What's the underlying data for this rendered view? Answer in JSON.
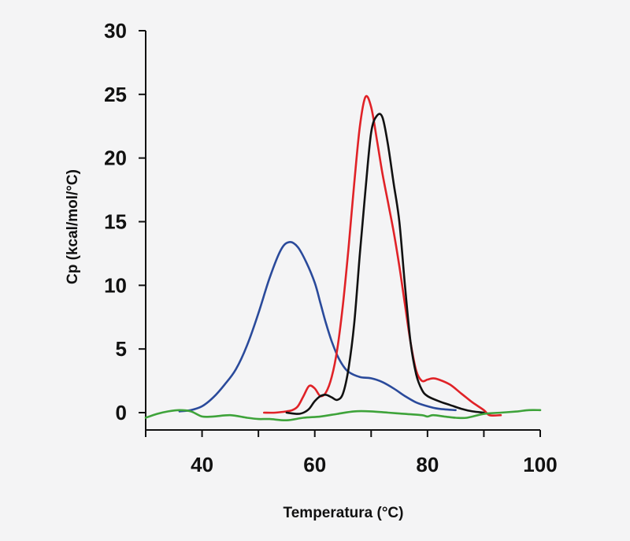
{
  "chart_data": {
    "type": "line",
    "xlabel": "Temperatura (°C)",
    "ylabel": "Cp (kcal/mol/°C)",
    "xlim": [
      30,
      100
    ],
    "ylim": [
      0,
      30
    ],
    "xticks": [
      40,
      60,
      80,
      100
    ],
    "yticks": [
      0,
      5,
      10,
      15,
      20,
      25,
      30
    ],
    "grid": false,
    "series": [
      {
        "color": "#2a4a9b",
        "points": [
          [
            36,
            0.1
          ],
          [
            38,
            0.2
          ],
          [
            40,
            0.5
          ],
          [
            42,
            1.2
          ],
          [
            44,
            2.2
          ],
          [
            46,
            3.4
          ],
          [
            48,
            5.3
          ],
          [
            50,
            7.8
          ],
          [
            52,
            10.6
          ],
          [
            54,
            12.8
          ],
          [
            55.5,
            13.4
          ],
          [
            57,
            13.0
          ],
          [
            58.5,
            11.8
          ],
          [
            60,
            10.2
          ],
          [
            61,
            8.6
          ],
          [
            62,
            7.0
          ],
          [
            63,
            5.6
          ],
          [
            64,
            4.5
          ],
          [
            65,
            3.7
          ],
          [
            66,
            3.2
          ],
          [
            68,
            2.8
          ],
          [
            70,
            2.7
          ],
          [
            72,
            2.4
          ],
          [
            74,
            1.9
          ],
          [
            76,
            1.3
          ],
          [
            78,
            0.8
          ],
          [
            80,
            0.5
          ],
          [
            82,
            0.3
          ],
          [
            85,
            0.2
          ]
        ]
      },
      {
        "color": "#e02227",
        "points": [
          [
            51,
            0.0
          ],
          [
            53,
            0.0
          ],
          [
            55,
            0.1
          ],
          [
            56,
            0.2
          ],
          [
            57,
            0.5
          ],
          [
            58,
            1.3
          ],
          [
            59,
            2.1
          ],
          [
            60,
            1.9
          ],
          [
            61,
            1.3
          ],
          [
            62,
            1.6
          ],
          [
            63,
            2.8
          ],
          [
            64,
            5.0
          ],
          [
            65,
            8.5
          ],
          [
            66,
            13.0
          ],
          [
            67,
            18.0
          ],
          [
            68,
            22.5
          ],
          [
            69,
            24.8
          ],
          [
            70,
            24.0
          ],
          [
            71,
            21.5
          ],
          [
            72,
            18.8
          ],
          [
            73,
            16.5
          ],
          [
            74,
            14.2
          ],
          [
            75,
            11.5
          ],
          [
            76,
            8.5
          ],
          [
            77,
            5.5
          ],
          [
            78,
            3.3
          ],
          [
            79,
            2.5
          ],
          [
            80,
            2.6
          ],
          [
            81,
            2.7
          ],
          [
            82,
            2.6
          ],
          [
            84,
            2.2
          ],
          [
            86,
            1.5
          ],
          [
            88,
            0.8
          ],
          [
            90,
            0.2
          ],
          [
            91,
            -0.2
          ],
          [
            93,
            -0.2
          ]
        ]
      },
      {
        "color": "#111111",
        "points": [
          [
            55,
            0.0
          ],
          [
            57,
            -0.1
          ],
          [
            58,
            0.0
          ],
          [
            59,
            0.3
          ],
          [
            60,
            0.9
          ],
          [
            61,
            1.3
          ],
          [
            62,
            1.4
          ],
          [
            63,
            1.2
          ],
          [
            64,
            1.0
          ],
          [
            65,
            1.5
          ],
          [
            66,
            3.5
          ],
          [
            67,
            7.0
          ],
          [
            68,
            12.5
          ],
          [
            69,
            17.5
          ],
          [
            70,
            22.0
          ],
          [
            71,
            23.3
          ],
          [
            72,
            23.2
          ],
          [
            73,
            21.0
          ],
          [
            74,
            18.0
          ],
          [
            75,
            15.0
          ],
          [
            76,
            10.0
          ],
          [
            77,
            5.5
          ],
          [
            78,
            3.0
          ],
          [
            79,
            1.8
          ],
          [
            80,
            1.3
          ],
          [
            82,
            0.9
          ],
          [
            84,
            0.6
          ],
          [
            86,
            0.3
          ],
          [
            88,
            0.1
          ],
          [
            90,
            0.0
          ]
        ]
      },
      {
        "color": "#3ea33a",
        "points": [
          [
            30,
            -0.4
          ],
          [
            32,
            -0.1
          ],
          [
            34,
            0.1
          ],
          [
            36,
            0.2
          ],
          [
            38,
            0.1
          ],
          [
            40,
            -0.3
          ],
          [
            42,
            -0.3
          ],
          [
            45,
            -0.2
          ],
          [
            48,
            -0.4
          ],
          [
            50,
            -0.5
          ],
          [
            52,
            -0.5
          ],
          [
            55,
            -0.6
          ],
          [
            58,
            -0.4
          ],
          [
            61,
            -0.3
          ],
          [
            64,
            -0.1
          ],
          [
            67,
            0.1
          ],
          [
            70,
            0.1
          ],
          [
            73,
            0.0
          ],
          [
            76,
            -0.1
          ],
          [
            79,
            -0.2
          ],
          [
            80,
            -0.3
          ],
          [
            81,
            -0.2
          ],
          [
            83,
            -0.3
          ],
          [
            85,
            -0.4
          ],
          [
            87,
            -0.4
          ],
          [
            90,
            -0.1
          ],
          [
            93,
            0.0
          ],
          [
            96,
            0.1
          ],
          [
            98,
            0.2
          ],
          [
            100,
            0.2
          ]
        ]
      }
    ]
  }
}
